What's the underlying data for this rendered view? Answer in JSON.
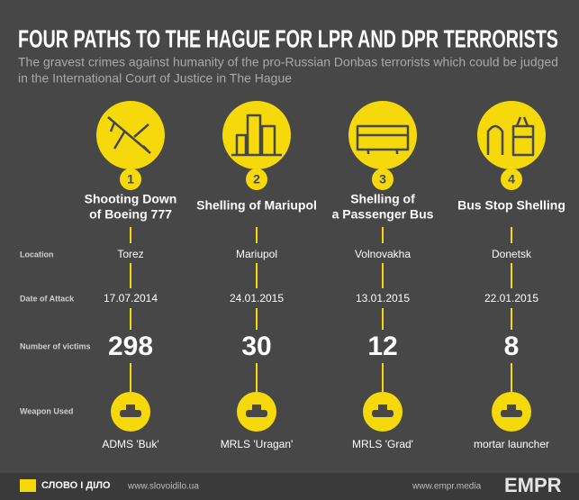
{
  "header": {
    "title": "FOUR PATHS TO THE HAGUE FOR LPR AND DPR TERRORISTS",
    "subtitle": [
      "The gravest crimes against humanity of the pro-Russian Donbas terrorists which could be judged",
      "in the International Court of Justice in The Hague"
    ]
  },
  "row_labels": {
    "location": "Location",
    "date": "Date of Attack",
    "victims": "Number of victims",
    "weapon": "Weapon Used"
  },
  "columns": [
    {
      "number": 1,
      "title": [
        "Shooting Down",
        "of Boeing 777"
      ],
      "location": "Torez",
      "date": "17.07.2014",
      "victims": 298,
      "weapon": "ADMS 'Buk'"
    },
    {
      "number": 2,
      "title": [
        "Shelling of Mariupol"
      ],
      "location": "Mariupol",
      "date": "24.01.2015",
      "victims": 30,
      "weapon": "MRLS 'Uragan'"
    },
    {
      "number": 3,
      "title": [
        "Shelling of",
        "a Passenger Bus"
      ],
      "location": "Volnovakha",
      "date": "13.01.2015",
      "victims": 12,
      "weapon": "MRLS 'Grad'"
    },
    {
      "number": 4,
      "title": [
        "Bus Stop Shelling"
      ],
      "location": "Donetsk",
      "date": "22.01.2015",
      "victims": 8,
      "weapon": "mortar launcher"
    }
  ],
  "footer": {
    "logo": "СЛОВО І ДІЛО",
    "site1": "www.slovoidilo.ua",
    "site2": "www.empr.media",
    "brand": "EMPR"
  }
}
